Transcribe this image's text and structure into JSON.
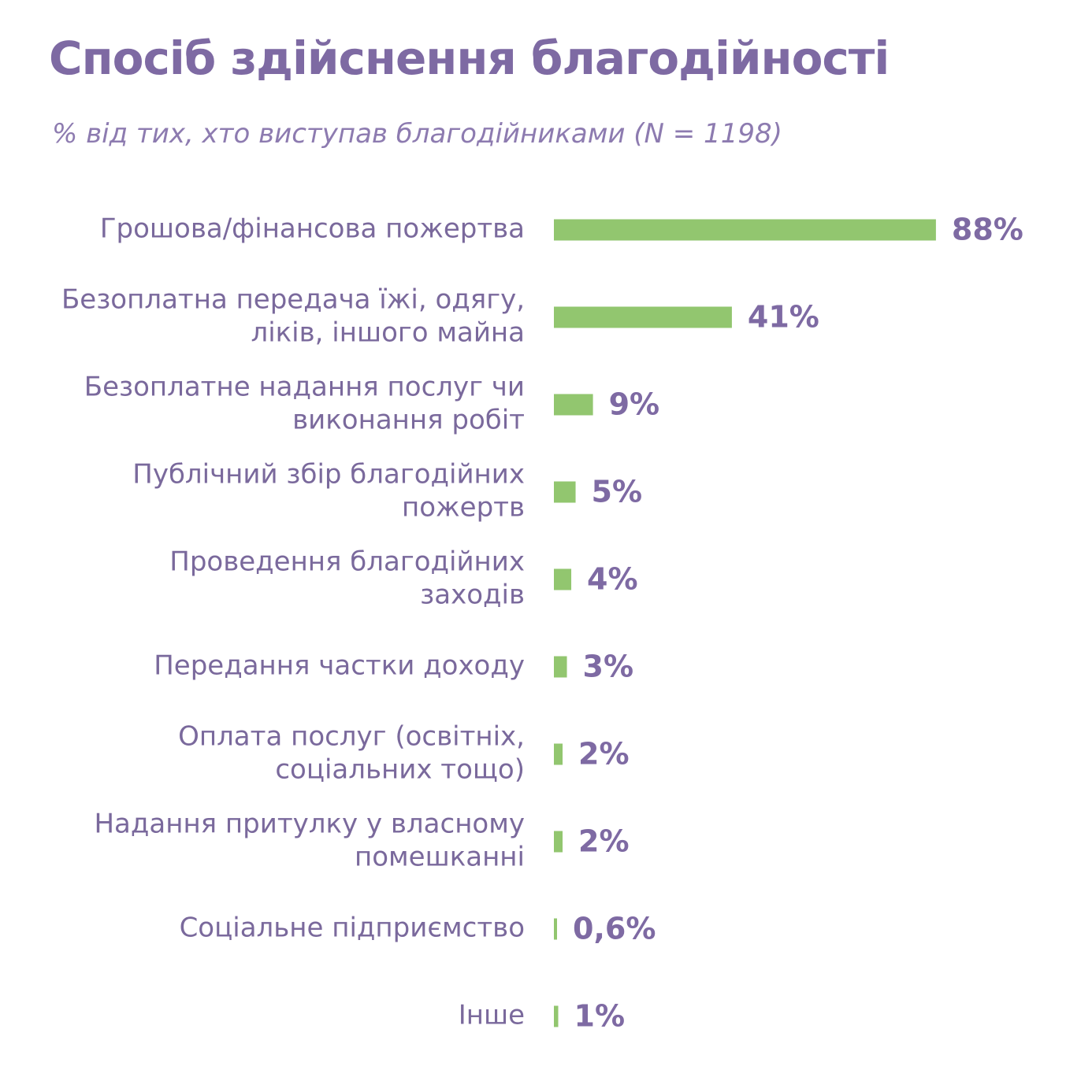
{
  "chart_data": {
    "type": "bar",
    "orientation": "horizontal",
    "title": "Спосіб здійснення благодійності",
    "subtitle": "% від тих, хто виступав благодійниками (N = 1198)",
    "unit": "%",
    "xlim": [
      0,
      100
    ],
    "categories": [
      [
        "Грошова/фінансова пожертва"
      ],
      [
        "Безоплатна передача їжі, одягу,",
        "ліків, іншого майна"
      ],
      [
        "Безоплатне надання послуг чи",
        "виконання робіт"
      ],
      [
        "Публічний збір благодійних",
        "пожертв"
      ],
      [
        "Проведення благодійних",
        "заходів"
      ],
      [
        "Передання частки доходу"
      ],
      [
        "Оплата послуг (освітніх,",
        "соціальних тощо)"
      ],
      [
        "Надання притулку у власному",
        "помешканні"
      ],
      [
        "Соціальне підприємство"
      ],
      [
        "Інше"
      ]
    ],
    "values": [
      88,
      41,
      9,
      5,
      4,
      3,
      2,
      2,
      0.6,
      1
    ],
    "value_labels": [
      "88%",
      "41%",
      "9%",
      "5%",
      "4%",
      "3%",
      "2%",
      "2%",
      "0,6%",
      "1%"
    ],
    "colors": {
      "bar": "#92c66f",
      "text": "#7a699c",
      "title": "#7e6aa3"
    }
  }
}
